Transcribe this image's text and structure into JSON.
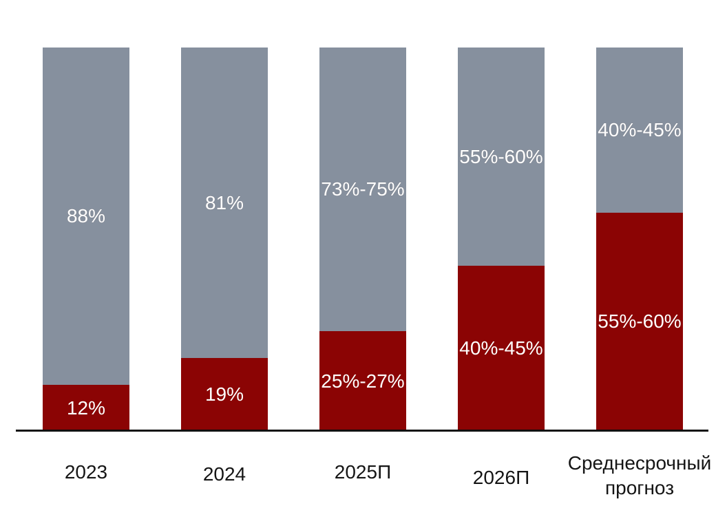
{
  "chart_data": {
    "type": "bar",
    "subtype": "stacked-percentage-columns",
    "title": "",
    "xlabel": "",
    "ylabel": "",
    "ylim": [
      0,
      100
    ],
    "grid": false,
    "legend": "none",
    "background_color": "#FFFFFF",
    "axis_line_color": "#111111",
    "data_label_color": "#FFFFFF",
    "category_label_color": "#151515",
    "categories": [
      "2023",
      "2024",
      "2025П",
      "2026П",
      "Среднесрочный прогноз"
    ],
    "series": [
      {
        "name": "gray-top-segment",
        "color": "#86909E",
        "labels": [
          "88%",
          "81%",
          "73%-75%",
          "55%-60%",
          "40%-45%"
        ],
        "values": [
          88,
          81,
          74,
          57,
          43
        ]
      },
      {
        "name": "red-bottom-segment",
        "color": "#8B0404",
        "labels": [
          "12%",
          "19%",
          "25%-27%",
          "40%-45%",
          "55%-60%"
        ],
        "values": [
          12,
          19,
          26,
          43,
          57
        ]
      }
    ]
  }
}
